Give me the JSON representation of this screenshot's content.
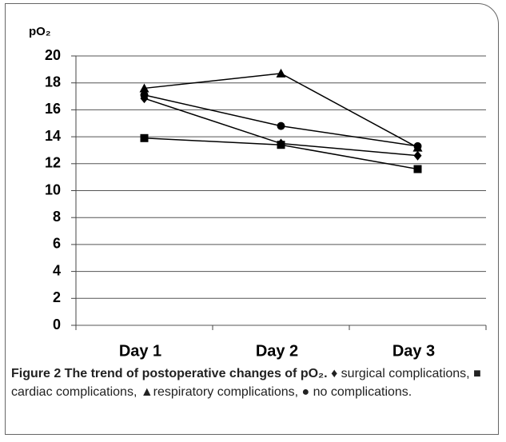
{
  "chart_data": {
    "type": "line",
    "y_label": "pO₂",
    "categories": [
      "Day 1",
      "Day 2",
      "Day 3"
    ],
    "series": [
      {
        "marker": "diamond",
        "color": "#000000",
        "values": [
          16.85,
          13.5,
          12.6
        ]
      },
      {
        "marker": "square",
        "color": "#000000",
        "values": [
          13.9,
          13.4,
          11.6
        ]
      },
      {
        "marker": "triangle",
        "color": "#000000",
        "values": [
          17.6,
          18.7,
          13.2
        ]
      },
      {
        "marker": "circle",
        "color": "#000000",
        "values": [
          17.1,
          14.8,
          13.3
        ]
      }
    ],
    "ylim": [
      0,
      20
    ],
    "yticks": [
      0,
      2,
      4,
      6,
      8,
      10,
      12,
      14,
      16,
      18,
      20
    ],
    "grid": true
  },
  "caption": {
    "title": "Figure 2 The trend of postoperative changes of pO₂.",
    "text": "♦ surgical complications, ■ cardiac complications, ▲respiratory complications, ● no complications."
  }
}
